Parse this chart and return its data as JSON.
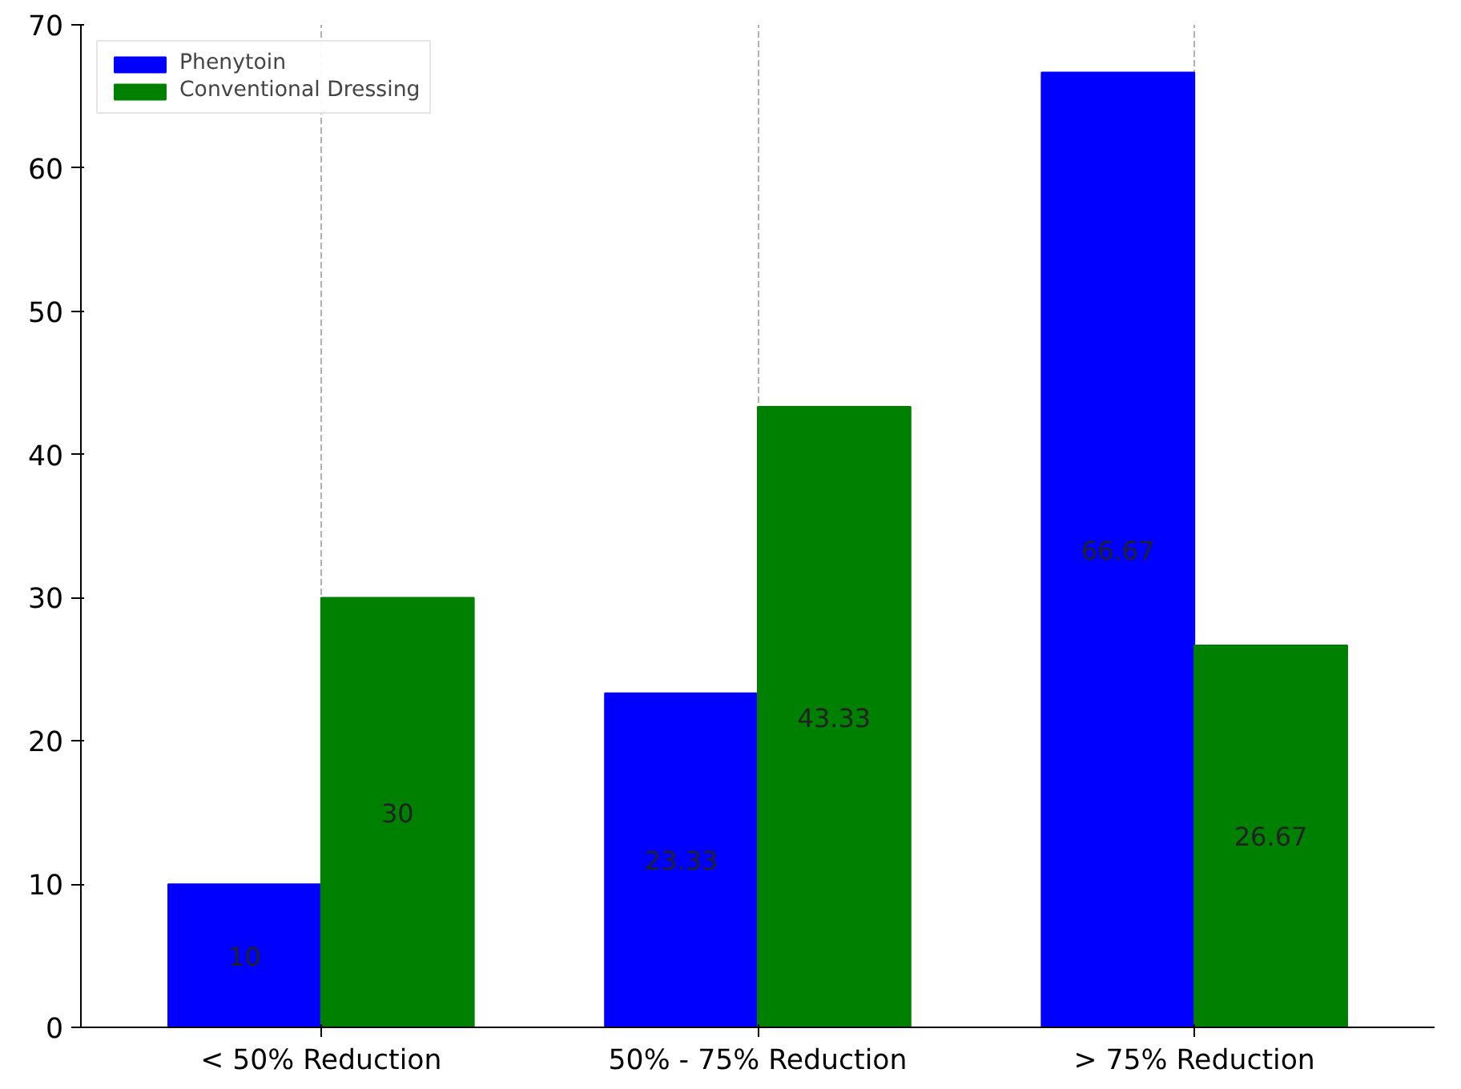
{
  "chart_data": {
    "type": "bar",
    "categories": [
      "< 50% Reduction",
      "50% - 75% Reduction",
      "> 75% Reduction"
    ],
    "series": [
      {
        "name": "Phenytoin",
        "color": "#0000ff",
        "values": [
          10,
          23.33,
          66.67
        ]
      },
      {
        "name": "Conventional Dressing",
        "color": "#008000",
        "values": [
          30,
          43.33,
          26.67
        ]
      }
    ],
    "ylim": [
      0,
      70
    ],
    "yticks": [
      0,
      10,
      20,
      30,
      40,
      50,
      60,
      70
    ],
    "grid": "x",
    "legend": "top left",
    "data_labels": true
  }
}
